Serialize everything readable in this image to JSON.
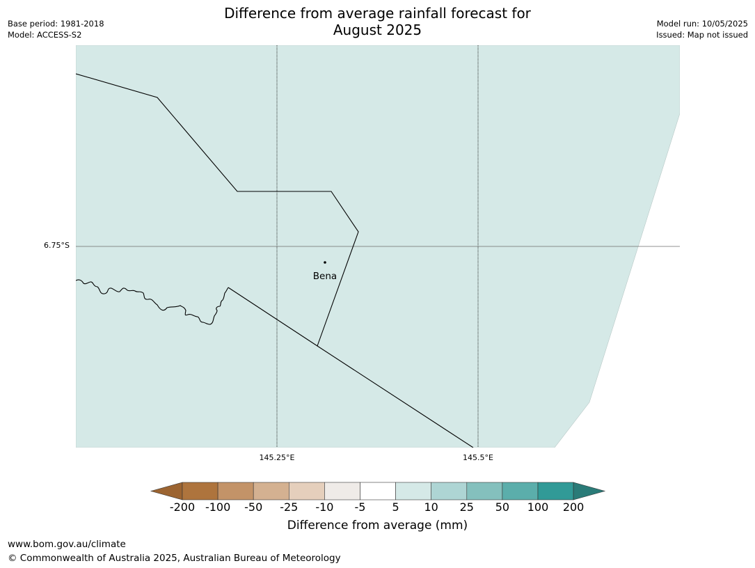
{
  "title": {
    "line1": "Difference from average rainfall forecast for",
    "line2": "August 2025"
  },
  "meta": {
    "base_period": "Base period: 1981-2018",
    "model": "Model: ACCESS-S2",
    "model_run": "Model run: 10/05/2025",
    "issued": "Issued: Map not issued"
  },
  "map": {
    "fill_color": "#d5e9e7",
    "gridlines": {
      "latitude": [
        "6.75°S"
      ],
      "longitude": [
        "145.25°E",
        "145.5°E"
      ]
    },
    "place": {
      "name": "Bena",
      "marker": "dot"
    }
  },
  "colorbar": {
    "label": "Difference from average (mm)",
    "ticks": [
      "-200",
      "-100",
      "-50",
      "-25",
      "-10",
      "-5",
      "5",
      "10",
      "25",
      "50",
      "100",
      "200"
    ],
    "colors": [
      "#9c6431",
      "#ae743d",
      "#c39368",
      "#d4b191",
      "#e5cfbc",
      "#efebe8",
      "#ffffff",
      "#d5e9e7",
      "#aed5d4",
      "#84c0bd",
      "#5baeab",
      "#319a97",
      "#2a7b78"
    ]
  },
  "footer": {
    "url": "www.bom.gov.au/climate",
    "copyright": "© Commonwealth of Australia 2025, Australian Bureau of Meteorology"
  }
}
